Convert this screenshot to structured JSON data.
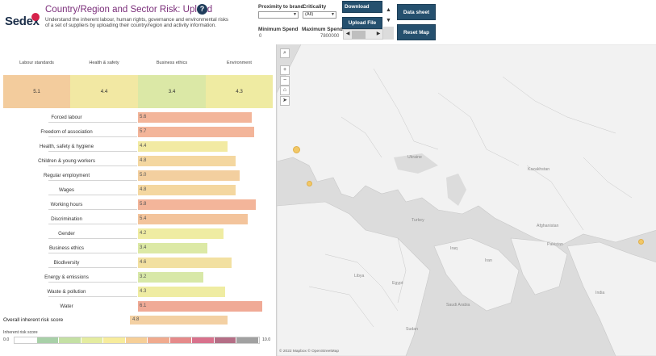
{
  "header": {
    "logo_text": "Sedex",
    "title": "Country/Region and Sector Risk: Upload",
    "help_icon": "?",
    "description": "Understand the inherent labour, human rights, governance and environmental risks of a set of suppliers by uploading their country/region and activity information."
  },
  "filters": {
    "proximity_label": "Proximity to brand",
    "proximity_value": "",
    "criticality_label": "Criticality",
    "criticality_value": "(All)",
    "min_spend_label": "Minimum Spend",
    "min_spend_value": "0",
    "max_spend_label": "Maximum Spend",
    "max_spend_value": "7800000"
  },
  "buttons": {
    "download_template": "Download Templ",
    "upload_file": "Upload File",
    "data_sheet": "Data sheet",
    "reset_map": "Reset Map",
    "up_arrow": "▲",
    "down_arrow": "▼",
    "scroll_left": "◀",
    "scroll_right": "▶"
  },
  "categories": [
    {
      "label": "Labour standards",
      "score": "5.1",
      "color": "#f3cc9d"
    },
    {
      "label": "Health & safety",
      "score": "4.4",
      "color": "#f2e8a3"
    },
    {
      "label": "Business ethics",
      "score": "3.4",
      "color": "#dbe8a6"
    },
    {
      "label": "Environment",
      "score": "4.3",
      "color": "#efeba2"
    }
  ],
  "issues": [
    {
      "label": "Forced labour",
      "score": "5.6",
      "value": 5.6,
      "color": "#f3b59a"
    },
    {
      "label": "Freedom of association",
      "score": "5.7",
      "value": 5.7,
      "color": "#f3b59a"
    },
    {
      "label": "Health, safety & hygiene",
      "score": "4.4",
      "value": 4.4,
      "color": "#f2eaa3"
    },
    {
      "label": "Children & young workers",
      "score": "4.8",
      "value": 4.8,
      "color": "#f4d7a0"
    },
    {
      "label": "Regular employment",
      "score": "5.0",
      "value": 5.0,
      "color": "#f3cf9f"
    },
    {
      "label": "Wages",
      "score": "4.8",
      "value": 4.8,
      "color": "#f4d7a0"
    },
    {
      "label": "Working hours",
      "score": "5.8",
      "value": 5.8,
      "color": "#f3b59a"
    },
    {
      "label": "Discrimination",
      "score": "5.4",
      "value": 5.4,
      "color": "#f3c49c"
    },
    {
      "label": "Gender",
      "score": "4.2",
      "value": 4.2,
      "color": "#efeca2"
    },
    {
      "label": "Business ethics",
      "score": "3.4",
      "value": 3.4,
      "color": "#dce9a6"
    },
    {
      "label": "Biodiversity",
      "score": "4.6",
      "value": 4.6,
      "color": "#f2e0a1"
    },
    {
      "label": "Energy & emissions",
      "score": "3.2",
      "value": 3.2,
      "color": "#d8e8a8"
    },
    {
      "label": "Waste & pollution",
      "score": "4.3",
      "value": 4.3,
      "color": "#efeca2"
    },
    {
      "label": "Water",
      "score": "6.1",
      "value": 6.1,
      "color": "#f0aa96"
    }
  ],
  "overall": {
    "label": "Overall inherent risk score",
    "score": "4.8",
    "value": 4.8
  },
  "legend": {
    "label": "Inherent risk score",
    "min": "0.0",
    "max": "10.0",
    "colors": [
      "#ffffff",
      "#a8d0a8",
      "#c4e0a4",
      "#e4eca0",
      "#f7ec9c",
      "#f6cf98",
      "#f0aa8e",
      "#e58a8a",
      "#d8718c",
      "#b46e86",
      "#a1a1a1"
    ]
  },
  "map": {
    "labels": [
      "Kazakhstan",
      "Ukraine",
      "Turkey",
      "Iraq",
      "Iran",
      "Egypt",
      "Libya",
      "Saudi Arabia",
      "Sudan",
      "Pakistan",
      "India",
      "Afghanistan"
    ],
    "controls": {
      "search": "⌕",
      "zoom_in": "+",
      "zoom_out": "−",
      "home": "⌂",
      "pointer": "➤"
    },
    "attribution": "© 2022 Mapbox © OpenStreetMap"
  }
}
